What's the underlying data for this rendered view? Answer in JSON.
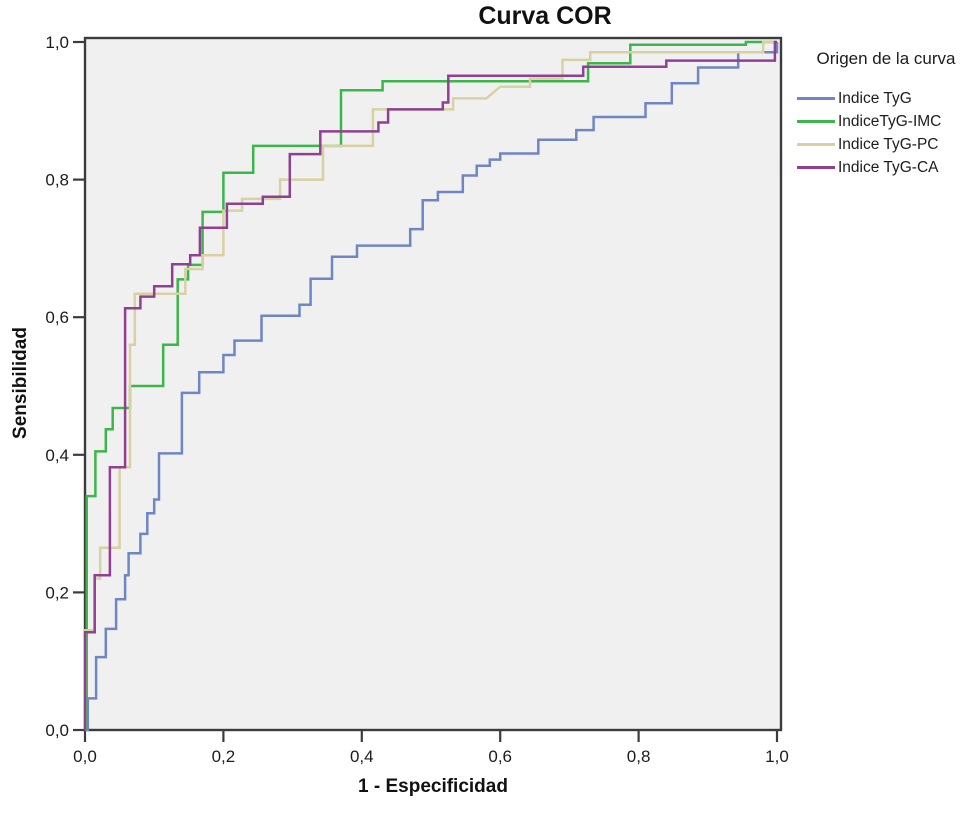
{
  "title": "Curva COR",
  "axes": {
    "x_label": "1 - Especificidad",
    "y_label": "Sensibilidad"
  },
  "legend": {
    "title": "Origen de la curva"
  },
  "chart_data": {
    "type": "line",
    "subtype": "roc-step-curves",
    "title": "Curva COR",
    "xlabel": "1 - Especificidad",
    "ylabel": "Sensibilidad",
    "xlim": [
      0,
      1
    ],
    "ylim": [
      0,
      1
    ],
    "grid": false,
    "legend_position": "right",
    "legend_title": "Origen de la curva",
    "plot_bg_color": "#F0F0F0",
    "frame_color": "#3c3c3c",
    "x_ticks": {
      "values": [
        0,
        0.2,
        0.4,
        0.6,
        0.8,
        1.0
      ],
      "labels": [
        "0,0",
        "0,2",
        "0,4",
        "0,6",
        "0,8",
        "1,0"
      ]
    },
    "y_ticks": {
      "values": [
        0,
        0.2,
        0.4,
        0.6,
        0.8,
        1.0
      ],
      "labels": [
        "0,0",
        "0,2",
        "0,4",
        "0,6",
        "0,8",
        "1,0"
      ]
    },
    "series": [
      {
        "name": "Indice TyG",
        "color": "#6F86C5",
        "points": [
          [
            0,
            0
          ],
          [
            0.004,
            0
          ],
          [
            0.004,
            0.046
          ],
          [
            0.016,
            0.046
          ],
          [
            0.016,
            0.106
          ],
          [
            0.03,
            0.106
          ],
          [
            0.03,
            0.147
          ],
          [
            0.045,
            0.147
          ],
          [
            0.045,
            0.19
          ],
          [
            0.058,
            0.19
          ],
          [
            0.058,
            0.225
          ],
          [
            0.063,
            0.225
          ],
          [
            0.063,
            0.257
          ],
          [
            0.08,
            0.257
          ],
          [
            0.08,
            0.285
          ],
          [
            0.09,
            0.285
          ],
          [
            0.09,
            0.315
          ],
          [
            0.1,
            0.315
          ],
          [
            0.1,
            0.335
          ],
          [
            0.107,
            0.335
          ],
          [
            0.107,
            0.402
          ],
          [
            0.14,
            0.402
          ],
          [
            0.14,
            0.49
          ],
          [
            0.165,
            0.49
          ],
          [
            0.165,
            0.52
          ],
          [
            0.2,
            0.52
          ],
          [
            0.2,
            0.545
          ],
          [
            0.216,
            0.545
          ],
          [
            0.216,
            0.566
          ],
          [
            0.255,
            0.566
          ],
          [
            0.255,
            0.602
          ],
          [
            0.31,
            0.602
          ],
          [
            0.31,
            0.618
          ],
          [
            0.326,
            0.618
          ],
          [
            0.326,
            0.656
          ],
          [
            0.357,
            0.656
          ],
          [
            0.357,
            0.688
          ],
          [
            0.393,
            0.688
          ],
          [
            0.393,
            0.704
          ],
          [
            0.47,
            0.704
          ],
          [
            0.47,
            0.728
          ],
          [
            0.488,
            0.728
          ],
          [
            0.488,
            0.77
          ],
          [
            0.51,
            0.77
          ],
          [
            0.51,
            0.782
          ],
          [
            0.546,
            0.782
          ],
          [
            0.546,
            0.806
          ],
          [
            0.566,
            0.806
          ],
          [
            0.566,
            0.82
          ],
          [
            0.585,
            0.82
          ],
          [
            0.585,
            0.829
          ],
          [
            0.6,
            0.829
          ],
          [
            0.6,
            0.838
          ],
          [
            0.655,
            0.838
          ],
          [
            0.655,
            0.858
          ],
          [
            0.71,
            0.858
          ],
          [
            0.71,
            0.872
          ],
          [
            0.735,
            0.872
          ],
          [
            0.735,
            0.891
          ],
          [
            0.81,
            0.891
          ],
          [
            0.81,
            0.911
          ],
          [
            0.848,
            0.911
          ],
          [
            0.848,
            0.94
          ],
          [
            0.886,
            0.94
          ],
          [
            0.886,
            0.963
          ],
          [
            0.944,
            0.963
          ],
          [
            0.944,
            0.985
          ],
          [
            1,
            0.985
          ],
          [
            1,
            1
          ]
        ]
      },
      {
        "name": "IndiceTyG-IMC",
        "color": "#3CB54A",
        "points": [
          [
            0.0025,
            0
          ],
          [
            0.0025,
            0.34
          ],
          [
            0.015,
            0.34
          ],
          [
            0.015,
            0.405
          ],
          [
            0.03,
            0.405
          ],
          [
            0.03,
            0.437
          ],
          [
            0.04,
            0.437
          ],
          [
            0.04,
            0.468
          ],
          [
            0.065,
            0.468
          ],
          [
            0.065,
            0.5
          ],
          [
            0.113,
            0.5
          ],
          [
            0.113,
            0.56
          ],
          [
            0.134,
            0.56
          ],
          [
            0.134,
            0.655
          ],
          [
            0.149,
            0.655
          ],
          [
            0.149,
            0.676
          ],
          [
            0.17,
            0.676
          ],
          [
            0.17,
            0.753
          ],
          [
            0.2,
            0.753
          ],
          [
            0.2,
            0.81
          ],
          [
            0.243,
            0.81
          ],
          [
            0.243,
            0.849
          ],
          [
            0.37,
            0.849
          ],
          [
            0.37,
            0.93
          ],
          [
            0.43,
            0.93
          ],
          [
            0.43,
            0.943
          ],
          [
            0.727,
            0.943
          ],
          [
            0.727,
            0.969
          ],
          [
            0.788,
            0.969
          ],
          [
            0.788,
            0.996
          ],
          [
            0.955,
            0.996
          ],
          [
            0.955,
            1
          ],
          [
            1,
            1
          ]
        ]
      },
      {
        "name": "Indice TyG-PC",
        "color": "#D8D1A2",
        "points": [
          [
            0,
            0
          ],
          [
            0,
            0.145
          ],
          [
            0.014,
            0.145
          ],
          [
            0.014,
            0.22
          ],
          [
            0.022,
            0.22
          ],
          [
            0.022,
            0.265
          ],
          [
            0.05,
            0.265
          ],
          [
            0.05,
            0.382
          ],
          [
            0.065,
            0.382
          ],
          [
            0.065,
            0.56
          ],
          [
            0.072,
            0.56
          ],
          [
            0.072,
            0.634
          ],
          [
            0.145,
            0.634
          ],
          [
            0.145,
            0.67
          ],
          [
            0.17,
            0.67
          ],
          [
            0.17,
            0.69
          ],
          [
            0.2,
            0.69
          ],
          [
            0.2,
            0.755
          ],
          [
            0.227,
            0.755
          ],
          [
            0.227,
            0.772
          ],
          [
            0.282,
            0.772
          ],
          [
            0.282,
            0.8
          ],
          [
            0.344,
            0.8
          ],
          [
            0.344,
            0.849
          ],
          [
            0.416,
            0.849
          ],
          [
            0.416,
            0.902
          ],
          [
            0.532,
            0.902
          ],
          [
            0.532,
            0.918
          ],
          [
            0.58,
            0.918
          ],
          [
            0.6,
            0.935
          ],
          [
            0.643,
            0.935
          ],
          [
            0.643,
            0.947
          ],
          [
            0.69,
            0.947
          ],
          [
            0.69,
            0.974
          ],
          [
            0.73,
            0.974
          ],
          [
            0.73,
            0.985
          ],
          [
            0.98,
            0.985
          ],
          [
            0.98,
            1
          ],
          [
            1,
            1
          ]
        ]
      },
      {
        "name": "Indice TyG-CA",
        "color": "#8F4092",
        "points": [
          [
            0,
            0
          ],
          [
            0,
            0.142
          ],
          [
            0.014,
            0.142
          ],
          [
            0.014,
            0.225
          ],
          [
            0.036,
            0.225
          ],
          [
            0.036,
            0.382
          ],
          [
            0.058,
            0.382
          ],
          [
            0.058,
            0.613
          ],
          [
            0.08,
            0.613
          ],
          [
            0.08,
            0.63
          ],
          [
            0.1,
            0.63
          ],
          [
            0.1,
            0.645
          ],
          [
            0.126,
            0.645
          ],
          [
            0.126,
            0.677
          ],
          [
            0.152,
            0.677
          ],
          [
            0.152,
            0.69
          ],
          [
            0.166,
            0.69
          ],
          [
            0.166,
            0.73
          ],
          [
            0.205,
            0.73
          ],
          [
            0.205,
            0.765
          ],
          [
            0.257,
            0.765
          ],
          [
            0.257,
            0.775
          ],
          [
            0.296,
            0.775
          ],
          [
            0.296,
            0.837
          ],
          [
            0.34,
            0.837
          ],
          [
            0.34,
            0.87
          ],
          [
            0.424,
            0.87
          ],
          [
            0.424,
            0.883
          ],
          [
            0.438,
            0.883
          ],
          [
            0.438,
            0.902
          ],
          [
            0.517,
            0.902
          ],
          [
            0.517,
            0.912
          ],
          [
            0.525,
            0.912
          ],
          [
            0.525,
            0.951
          ],
          [
            0.72,
            0.951
          ],
          [
            0.72,
            0.964
          ],
          [
            0.84,
            0.964
          ],
          [
            0.84,
            0.973
          ],
          [
            0.997,
            0.973
          ],
          [
            0.997,
            1
          ],
          [
            1,
            1
          ]
        ]
      }
    ]
  }
}
